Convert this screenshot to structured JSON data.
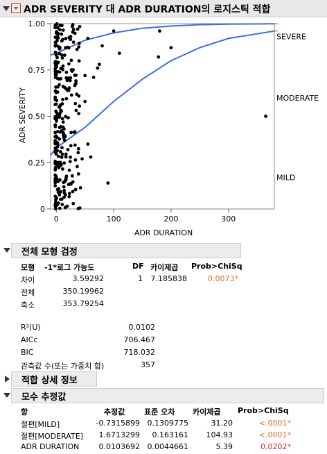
{
  "title": "ADR SEVERITY 대 ADR DURATION의 로지스틱 적합",
  "chart_data": {
    "type": "scatter",
    "xlabel": "ADR DURATION",
    "ylabel": "ADR SEVERITY",
    "xlim": [
      -10,
      380
    ],
    "ylim": [
      0,
      1
    ],
    "x_ticks": [
      "0",
      "100",
      "200",
      "300"
    ],
    "y_ticks": [
      "0",
      "0.25",
      "0.50",
      "0.75",
      "1.00"
    ],
    "right_labels": [
      "SEVERE",
      "MODERATE",
      "MILD"
    ],
    "curves": [
      {
        "points": [
          [
            -10,
            0.83
          ],
          [
            0,
            0.84
          ],
          [
            50,
            0.91
          ],
          [
            100,
            0.95
          ],
          [
            150,
            0.975
          ],
          [
            200,
            0.987
          ],
          [
            250,
            0.994
          ],
          [
            300,
            0.997
          ],
          [
            380,
            0.999
          ]
        ]
      },
      {
        "points": [
          [
            -10,
            0.29
          ],
          [
            0,
            0.33
          ],
          [
            50,
            0.44
          ],
          [
            100,
            0.58
          ],
          [
            150,
            0.7
          ],
          [
            200,
            0.8
          ],
          [
            250,
            0.87
          ],
          [
            300,
            0.92
          ],
          [
            380,
            0.96
          ]
        ]
      }
    ],
    "points": [
      [
        100,
        0.96
      ],
      [
        180,
        0.96
      ],
      [
        55,
        0.92
      ],
      [
        80,
        0.88
      ],
      [
        110,
        0.84
      ],
      [
        178,
        0.82
      ],
      [
        200,
        0.87
      ],
      [
        75,
        0.78
      ],
      [
        72,
        0.76
      ],
      [
        65,
        0.71
      ],
      [
        50,
        0.58
      ],
      [
        90,
        0.14
      ],
      [
        365,
        0.5
      ],
      [
        55,
        0.35
      ],
      [
        60,
        0.28
      ],
      [
        50,
        0.72
      ],
      [
        45,
        0.27
      ],
      [
        25,
        0.93
      ],
      [
        30,
        0.9
      ]
    ]
  },
  "whole_model": {
    "header": "전체 모형 검정",
    "columns": [
      "모형",
      "-1*로그 가능도",
      "DF",
      "카이제곱",
      "Prob>ChiSq"
    ],
    "rows": [
      {
        "label": "차이",
        "loglik": "3.59292",
        "df": "1",
        "chisq": "7.185838",
        "prob": "0.0073*"
      },
      {
        "label": "전체",
        "loglik": "350.19962"
      },
      {
        "label": "축소",
        "loglik": "353.79254"
      }
    ]
  },
  "stats": [
    {
      "label": "R²(U)",
      "value": "0.0102"
    },
    {
      "label": "AICc",
      "value": "706.467"
    },
    {
      "label": "BIC",
      "value": "718.032"
    },
    {
      "label": "관측값 수(또는 가중치 합)",
      "value": "357"
    }
  ],
  "fit_details": {
    "header": "적합 상세 정보"
  },
  "params": {
    "header": "모수 추정값",
    "columns": [
      "항",
      "추정값",
      "표준 오차",
      "카이제곱",
      "Prob>ChiSq"
    ],
    "rows": [
      {
        "term": "절편[MILD]",
        "est": "-0.7315899",
        "se": "0.1309775",
        "chisq": "31.20",
        "prob": "<.0001*"
      },
      {
        "term": "절편[MODERATE]",
        "est": "1.6713299",
        "se": "0.163161",
        "chisq": "104.93",
        "prob": "<.0001*"
      },
      {
        "term": "ADR DURATION",
        "est": "0.0103692",
        "se": "0.0044661",
        "chisq": "5.39",
        "prob": "0.0202*"
      }
    ]
  }
}
